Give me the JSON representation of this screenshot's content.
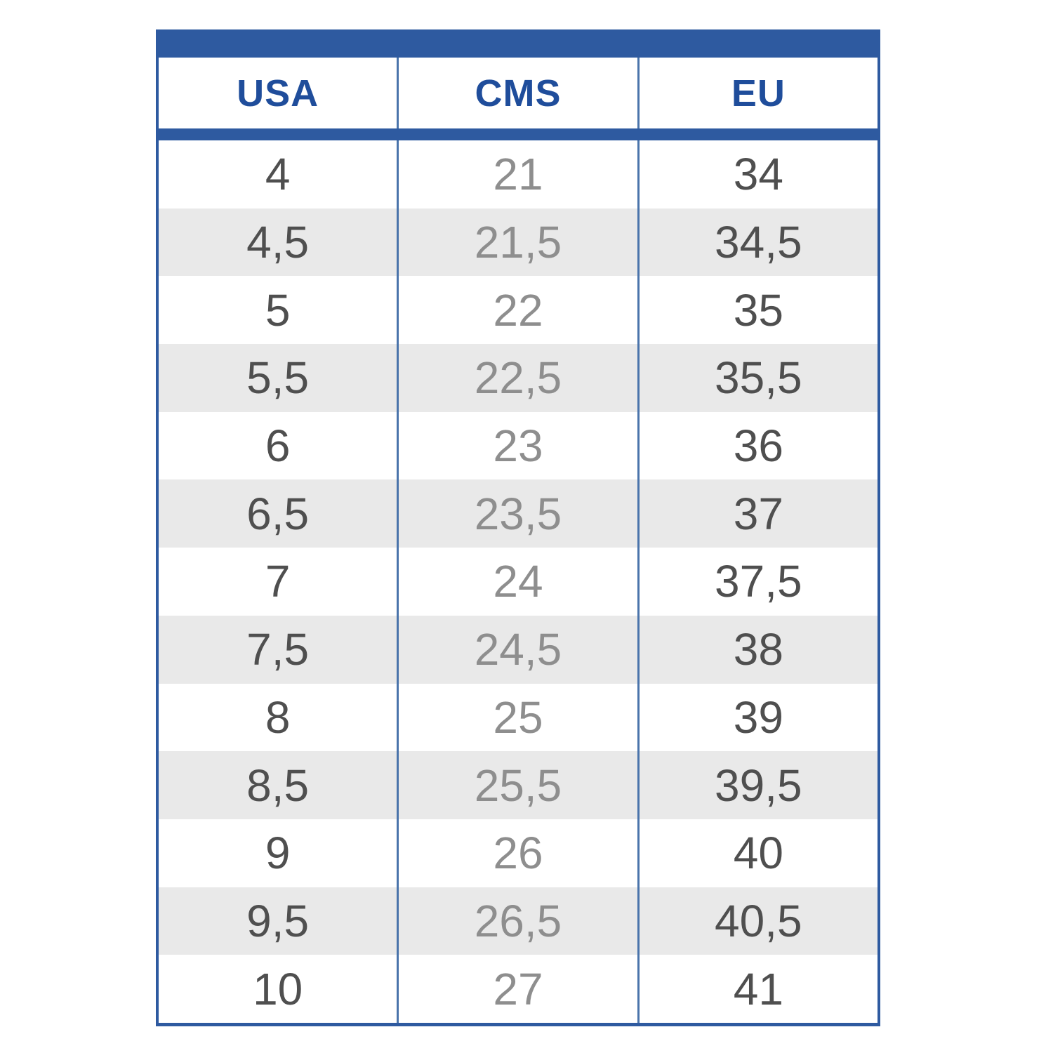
{
  "chart_data": {
    "type": "table",
    "columns": [
      "USA",
      "CMS",
      "EU"
    ],
    "rows": [
      [
        "4",
        "21",
        "34"
      ],
      [
        "4,5",
        "21,5",
        "34,5"
      ],
      [
        "5",
        "22",
        "35"
      ],
      [
        "5,5",
        "22,5",
        "35,5"
      ],
      [
        "6",
        "23",
        "36"
      ],
      [
        "6,5",
        "23,5",
        "37"
      ],
      [
        "7",
        "24",
        "37,5"
      ],
      [
        "7,5",
        "24,5",
        "38"
      ],
      [
        "8",
        "25",
        "39"
      ],
      [
        "8,5",
        "25,5",
        "39,5"
      ],
      [
        "9",
        "26",
        "40"
      ],
      [
        "9,5",
        "26,5",
        "40,5"
      ],
      [
        "10",
        "27",
        "41"
      ]
    ],
    "layout": {
      "header_fill": "none",
      "top_bar": true,
      "alternating_rows": true,
      "grid": "vertical-only"
    }
  },
  "colors": {
    "accent_blue": "#2e5aa0",
    "header_text_blue": "#1f4d9b",
    "grid_line_blue": "#4a74ab",
    "row_alt_gray": "#e9e9e9",
    "text_dark_gray": "#4f4f4f",
    "text_mid_gray": "#8e8e8e",
    "background": "#ffffff"
  }
}
